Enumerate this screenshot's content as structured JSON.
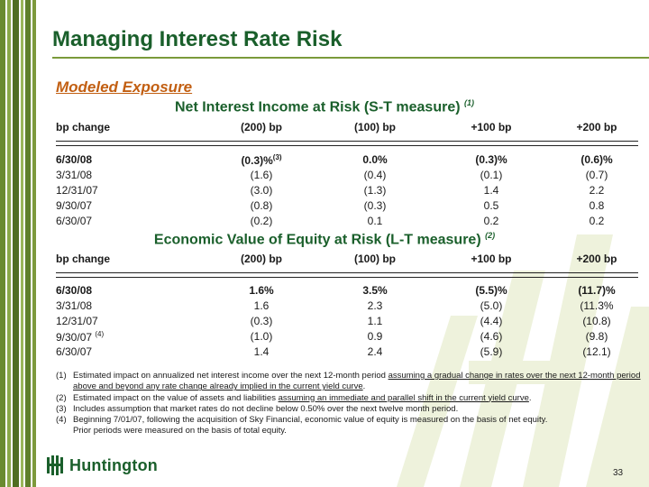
{
  "slide": {
    "title": "Managing Interest Rate Risk",
    "subtitle": "Modeled Exposure",
    "page_number": "33"
  },
  "nii": {
    "title": "Net Interest Income at Risk (S-T measure)",
    "title_note": "(1)",
    "header": [
      "bp change",
      "(200) bp",
      "(100) bp",
      "+100 bp",
      "+200 bp"
    ],
    "rows": [
      {
        "date": "6/30/08",
        "v1": "(0.3)%",
        "v1_sup": "(3)",
        "v2": "0.0%",
        "v3": "(0.3)%",
        "v4": "(0.6)%"
      },
      {
        "date": "3/31/08",
        "v1": "(1.6)",
        "v1_sup": "",
        "v2": "(0.4)",
        "v3": "(0.1)",
        "v4": "(0.7)"
      },
      {
        "date": "12/31/07",
        "v1": "(3.0)",
        "v1_sup": "",
        "v2": "(1.3)",
        "v3": "1.4",
        "v4": "2.2"
      },
      {
        "date": "9/30/07",
        "v1": "(0.8)",
        "v1_sup": "",
        "v2": "(0.3)",
        "v3": "0.5",
        "v4": "0.8"
      },
      {
        "date": "6/30/07",
        "v1": "(0.2)",
        "v1_sup": "",
        "v2": "0.1",
        "v3": "0.2",
        "v4": "0.2"
      }
    ]
  },
  "eve": {
    "title": "Economic Value of Equity at Risk (L-T measure)",
    "title_note": "(2)",
    "header": [
      "bp change",
      "(200) bp",
      "(100) bp",
      "+100 bp",
      "+200 bp"
    ],
    "rows": [
      {
        "date": "6/30/08",
        "date_sup": "",
        "v1": "1.6%",
        "v2": "3.5%",
        "v3": "(5.5)%",
        "v4": "(11.7)%"
      },
      {
        "date": "3/31/08",
        "date_sup": "",
        "v1": "1.6",
        "v2": "2.3",
        "v3": "(5.0)",
        "v4": "(11.3%"
      },
      {
        "date": "12/31/07",
        "date_sup": "",
        "v1": "(0.3)",
        "v2": "1.1",
        "v3": "(4.4)",
        "v4": "(10.8)"
      },
      {
        "date": "9/30/07",
        "date_sup": "(4)",
        "v1": "(1.0)",
        "v2": "0.9",
        "v3": "(4.6)",
        "v4": "(9.8)"
      },
      {
        "date": "6/30/07",
        "date_sup": "",
        "v1": "1.4",
        "v2": "2.4",
        "v3": "(5.9)",
        "v4": "(12.1)"
      }
    ]
  },
  "footnotes": {
    "n1_num": "(1)",
    "n1_pre": "Estimated impact on annualized net interest income over the next 12-month period ",
    "n1_u": "assuming a gradual change in rates over the next 12-month period above and beyond any rate change already implied in the current yield curve",
    "n1_post": ".",
    "n2_num": "(2)",
    "n2_pre": "Estimated impact on the value of assets and liabilities ",
    "n2_u": "assuming an immediate and parallel shift in the current yield curve",
    "n2_post": ".",
    "n3_num": "(3)",
    "n3": "Includes assumption that market rates do not decline below 0.50% over the next twelve month period.",
    "n4_num": "(4)",
    "n4_a": "Beginning 7/01/07, following the acquisition of Sky Financial, economic value of equity is measured on the basis of net equity.",
    "n4_b": "Prior periods were measured on the basis of total equity."
  },
  "logo": {
    "text": "Huntington"
  },
  "colors": {
    "title_green": "#1a5f2b",
    "subtitle_orange": "#c25f12",
    "stripe_green": "#5a7a2a"
  }
}
